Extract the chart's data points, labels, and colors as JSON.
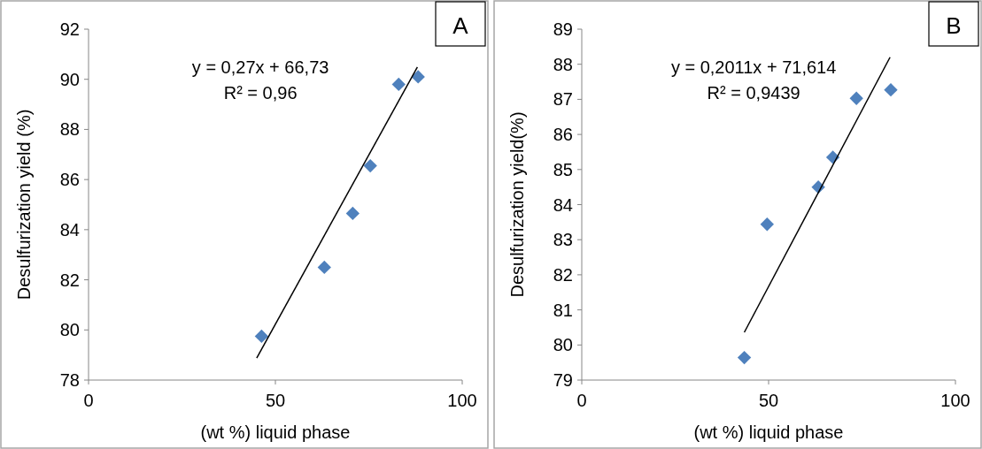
{
  "chart_data": [
    {
      "type": "scatter",
      "xlabel": "(wt %) liquid phase",
      "ylabel": "Desulfurization yield (%)",
      "xlim": [
        0,
        100
      ],
      "xticks": [
        0,
        50,
        100
      ],
      "ylim": [
        78,
        92
      ],
      "yticks": [
        78,
        80,
        82,
        84,
        86,
        88,
        90,
        92
      ],
      "grid": false,
      "annotations": [
        "A",
        "y = 0,27x + 66,73",
        "R² = 0,96"
      ],
      "series": [
        {
          "color": "#4f81bd",
          "marker": "diamond",
          "x": [
            46.3,
            63.1,
            70.7,
            75.4,
            83,
            88.2
          ],
          "values": [
            79.75,
            82.5,
            84.65,
            86.55,
            89.8,
            90.1
          ]
        },
        {
          "type": "line",
          "color": "#000000",
          "x": [
            45,
            88
          ],
          "values": [
            78.88,
            90.49
          ]
        }
      ]
    },
    {
      "type": "scatter",
      "xlabel": "(wt %) liquid phase",
      "ylabel": "Desulfurization yield(%)",
      "xlim": [
        0,
        100
      ],
      "xticks": [
        0,
        50,
        100
      ],
      "ylim": [
        79,
        89
      ],
      "yticks": [
        79,
        80,
        81,
        82,
        83,
        84,
        85,
        86,
        87,
        88,
        89
      ],
      "grid": false,
      "annotations": [
        "B",
        "y = 0,2011x + 71,614",
        "R² = 0,9439"
      ],
      "series": [
        {
          "color": "#4f81bd",
          "marker": "diamond",
          "x": [
            43.5,
            49.6,
            63.3,
            67.2,
            73.5,
            82.7
          ],
          "values": [
            79.64,
            83.44,
            84.5,
            85.35,
            87.03,
            87.27
          ]
        },
        {
          "type": "line",
          "color": "#000000",
          "x": [
            43.5,
            82.5
          ],
          "values": [
            80.36,
            88.2
          ]
        }
      ]
    }
  ]
}
